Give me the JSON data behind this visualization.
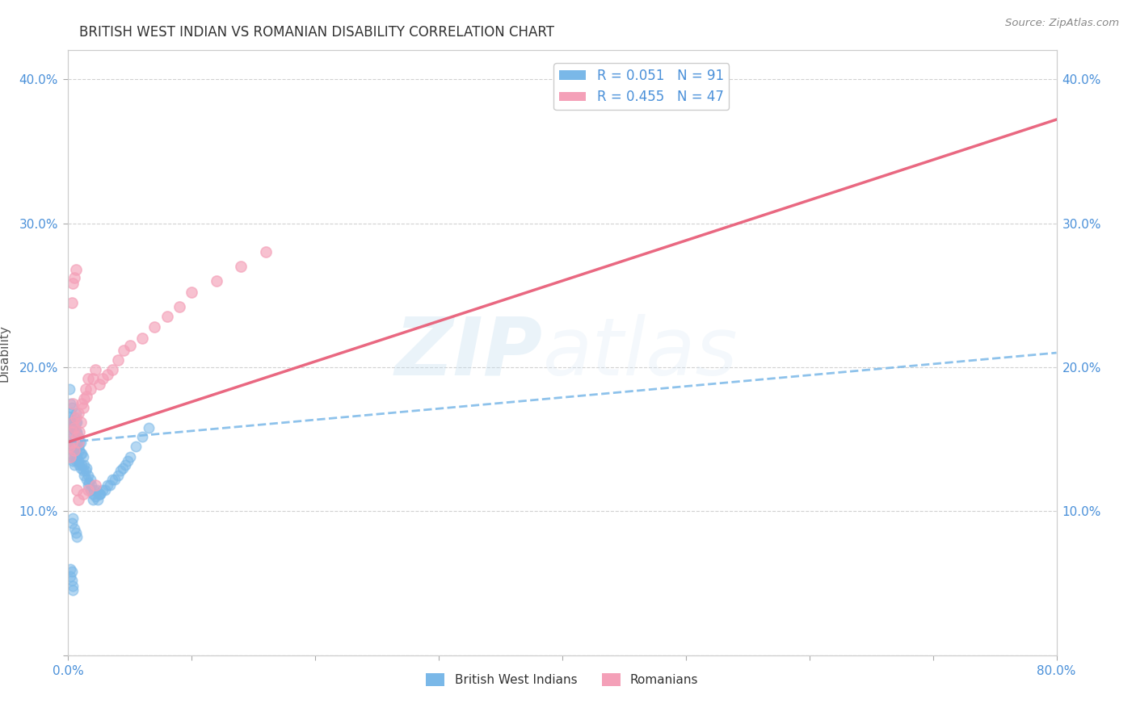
{
  "title": "BRITISH WEST INDIAN VS ROMANIAN DISABILITY CORRELATION CHART",
  "source": "Source: ZipAtlas.com",
  "ylabel": "Disability",
  "xlim": [
    0.0,
    0.8
  ],
  "ylim": [
    0.0,
    0.42
  ],
  "x_ticks": [
    0.0,
    0.1,
    0.2,
    0.3,
    0.4,
    0.5,
    0.6,
    0.7,
    0.8
  ],
  "y_ticks": [
    0.0,
    0.1,
    0.2,
    0.3,
    0.4
  ],
  "r_bwi": 0.051,
  "n_bwi": 91,
  "r_rom": 0.455,
  "n_rom": 47,
  "bwi_color": "#7ab8e8",
  "rom_color": "#f4a0b8",
  "watermark_zip": "ZIP",
  "watermark_atlas": "atlas",
  "legend_label_bwi": "British West Indians",
  "legend_label_rom": "Romanians",
  "bwi_trend_x": [
    0.0,
    0.8
  ],
  "bwi_trend_y": [
    0.148,
    0.21
  ],
  "rom_trend_x": [
    0.0,
    0.8
  ],
  "rom_trend_y": [
    0.148,
    0.372
  ],
  "bwi_x": [
    0.001,
    0.001,
    0.002,
    0.002,
    0.002,
    0.002,
    0.003,
    0.003,
    0.003,
    0.003,
    0.003,
    0.004,
    0.004,
    0.004,
    0.004,
    0.004,
    0.004,
    0.005,
    0.005,
    0.005,
    0.005,
    0.005,
    0.005,
    0.006,
    0.006,
    0.006,
    0.006,
    0.006,
    0.007,
    0.007,
    0.007,
    0.007,
    0.008,
    0.008,
    0.008,
    0.009,
    0.009,
    0.009,
    0.01,
    0.01,
    0.01,
    0.011,
    0.011,
    0.012,
    0.012,
    0.013,
    0.013,
    0.014,
    0.015,
    0.015,
    0.016,
    0.016,
    0.017,
    0.018,
    0.018,
    0.019,
    0.02,
    0.021,
    0.022,
    0.023,
    0.024,
    0.025,
    0.026,
    0.028,
    0.03,
    0.032,
    0.034,
    0.036,
    0.038,
    0.04,
    0.042,
    0.044,
    0.046,
    0.048,
    0.05,
    0.055,
    0.06,
    0.065,
    0.02,
    0.025,
    0.003,
    0.004,
    0.005,
    0.006,
    0.007,
    0.002,
    0.002,
    0.003,
    0.003,
    0.004,
    0.004
  ],
  "bwi_y": [
    0.185,
    0.165,
    0.175,
    0.155,
    0.145,
    0.168,
    0.158,
    0.148,
    0.162,
    0.138,
    0.172,
    0.142,
    0.152,
    0.162,
    0.135,
    0.148,
    0.158,
    0.138,
    0.148,
    0.158,
    0.165,
    0.132,
    0.142,
    0.135,
    0.145,
    0.155,
    0.162,
    0.168,
    0.138,
    0.148,
    0.155,
    0.162,
    0.135,
    0.145,
    0.152,
    0.132,
    0.142,
    0.148,
    0.13,
    0.14,
    0.148,
    0.132,
    0.14,
    0.128,
    0.138,
    0.125,
    0.132,
    0.128,
    0.122,
    0.13,
    0.118,
    0.125,
    0.12,
    0.115,
    0.122,
    0.118,
    0.112,
    0.115,
    0.11,
    0.115,
    0.108,
    0.112,
    0.112,
    0.115,
    0.115,
    0.118,
    0.118,
    0.122,
    0.122,
    0.125,
    0.128,
    0.13,
    0.132,
    0.135,
    0.138,
    0.145,
    0.152,
    0.158,
    0.108,
    0.112,
    0.092,
    0.095,
    0.088,
    0.085,
    0.082,
    0.06,
    0.055,
    0.058,
    0.052,
    0.048,
    0.045
  ],
  "rom_x": [
    0.001,
    0.002,
    0.003,
    0.003,
    0.004,
    0.004,
    0.005,
    0.005,
    0.006,
    0.007,
    0.008,
    0.008,
    0.009,
    0.01,
    0.011,
    0.012,
    0.013,
    0.014,
    0.015,
    0.016,
    0.018,
    0.02,
    0.022,
    0.025,
    0.028,
    0.032,
    0.036,
    0.04,
    0.045,
    0.05,
    0.06,
    0.07,
    0.08,
    0.09,
    0.1,
    0.12,
    0.14,
    0.16,
    0.003,
    0.004,
    0.005,
    0.006,
    0.007,
    0.008,
    0.012,
    0.016,
    0.022
  ],
  "rom_y": [
    0.145,
    0.138,
    0.155,
    0.148,
    0.162,
    0.175,
    0.142,
    0.158,
    0.165,
    0.152,
    0.148,
    0.168,
    0.155,
    0.162,
    0.175,
    0.172,
    0.178,
    0.185,
    0.18,
    0.192,
    0.185,
    0.192,
    0.198,
    0.188,
    0.192,
    0.195,
    0.198,
    0.205,
    0.212,
    0.215,
    0.22,
    0.228,
    0.235,
    0.242,
    0.252,
    0.26,
    0.27,
    0.28,
    0.245,
    0.258,
    0.262,
    0.268,
    0.115,
    0.108,
    0.112,
    0.115,
    0.118
  ]
}
